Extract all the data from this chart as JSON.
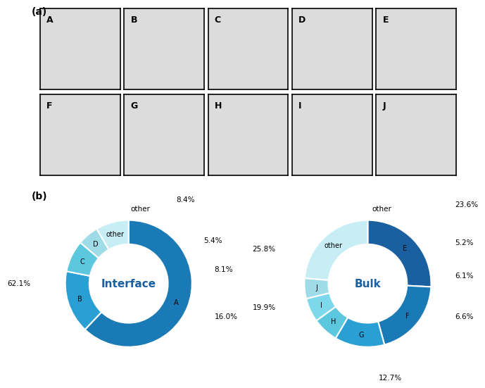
{
  "interface": {
    "labels": [
      "A",
      "B",
      "C",
      "D",
      "other"
    ],
    "values": [
      62.1,
      16.0,
      8.1,
      5.4,
      8.4
    ],
    "colors": [
      "#1a7ab5",
      "#2a9fd4",
      "#5bc8e0",
      "#a0dce8",
      "#c8eef5"
    ],
    "title": "Interface"
  },
  "bulk": {
    "labels": [
      "E",
      "F",
      "G",
      "H",
      "I",
      "J",
      "other"
    ],
    "values": [
      25.8,
      19.9,
      12.7,
      6.6,
      6.1,
      5.2,
      23.6
    ],
    "colors": [
      "#1a5fa0",
      "#1a7ab5",
      "#2a9fd4",
      "#5bc8e0",
      "#7cd8ea",
      "#a0dce8",
      "#c8eef5"
    ],
    "title": "Bulk"
  },
  "mol_labels": [
    "A",
    "B",
    "C",
    "D",
    "E",
    "F",
    "G",
    "H",
    "I",
    "J"
  ],
  "panel_a_label": "(a)",
  "panel_b_label": "(b)"
}
